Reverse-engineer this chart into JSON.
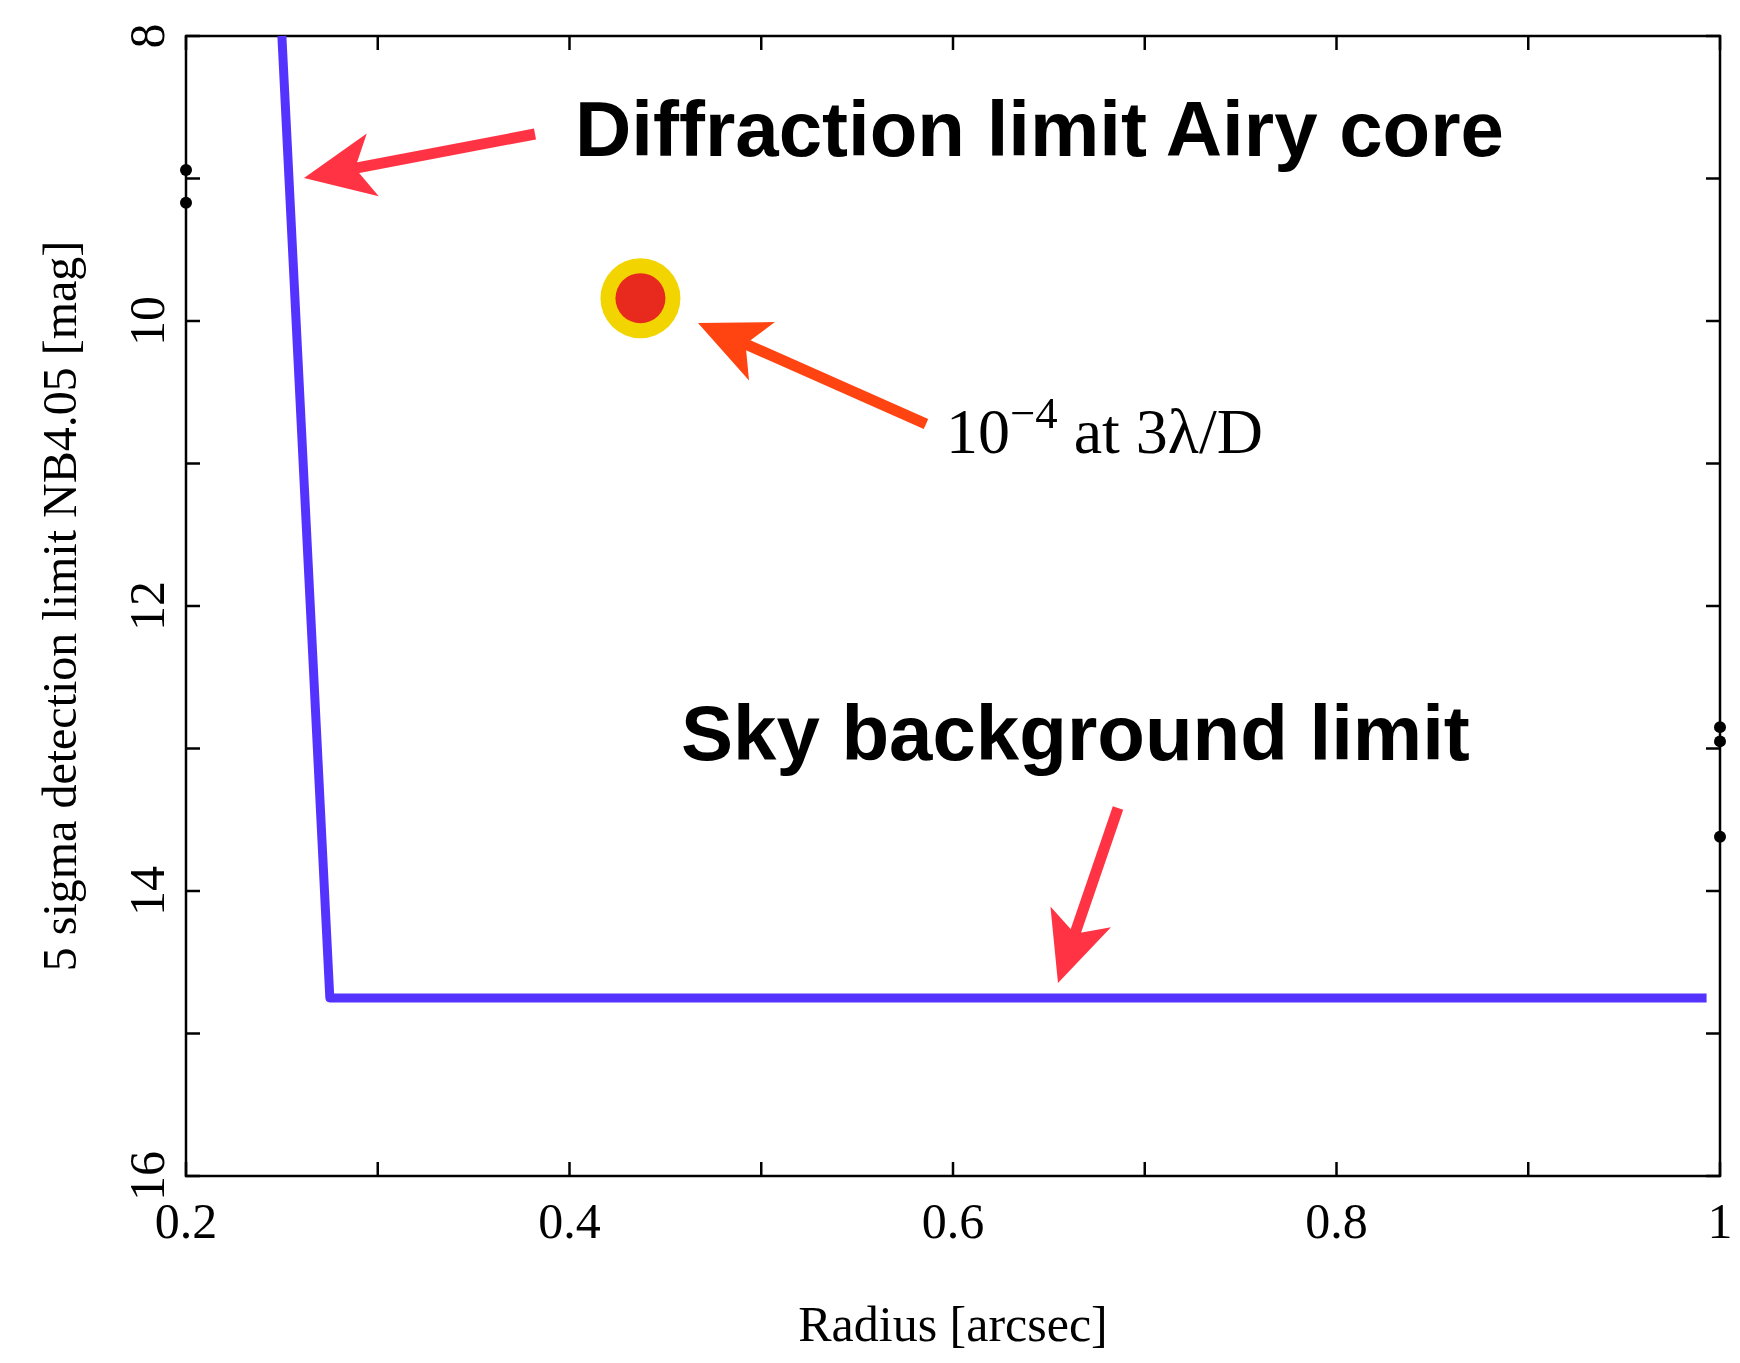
{
  "chart_data": {
    "type": "line",
    "xlabel": "Radius [arcsec]",
    "ylabel": "5 sigma detection limit NB4.05 [mag]",
    "xlim": [
      0.2,
      1
    ],
    "xticks": [
      0.2,
      {
        "value": 0.3,
        "label": null
      },
      0.4,
      {
        "value": 0.5,
        "label": null
      },
      0.6,
      {
        "value": 0.7,
        "label": null
      },
      0.8,
      {
        "value": 0.9,
        "label": null
      },
      1
    ],
    "ylim": [
      16,
      8
    ],
    "yticks": [
      8,
      {
        "value": 9,
        "label": null
      },
      10,
      {
        "value": 11,
        "label": null
      },
      12,
      {
        "value": 13,
        "label": null
      },
      14,
      {
        "value": 15,
        "label": null
      },
      16
    ],
    "grid": false,
    "series": [
      {
        "color": "#5533ff",
        "x": [
          0.25,
          0.275,
          0.993
        ],
        "values": [
          8,
          14.75,
          14.75
        ],
        "marker": "none"
      },
      {
        "type": "scatter",
        "color": "#e82a1e",
        "x": [
          0.437
        ],
        "values": [
          9.84
        ],
        "marker": "circle"
      },
      {
        "type": "scatter",
        "color": "#000000",
        "x": [
          0.2,
          0.2,
          1,
          1,
          1
        ],
        "values": [
          8.94,
          9.17,
          12.85,
          12.95,
          13.62
        ],
        "marker": "circle"
      }
    ],
    "annotations": [
      "Diffraction limit Airy core",
      "10$^{−4}$ at 3λ/D",
      "Sky background limit"
    ]
  }
}
